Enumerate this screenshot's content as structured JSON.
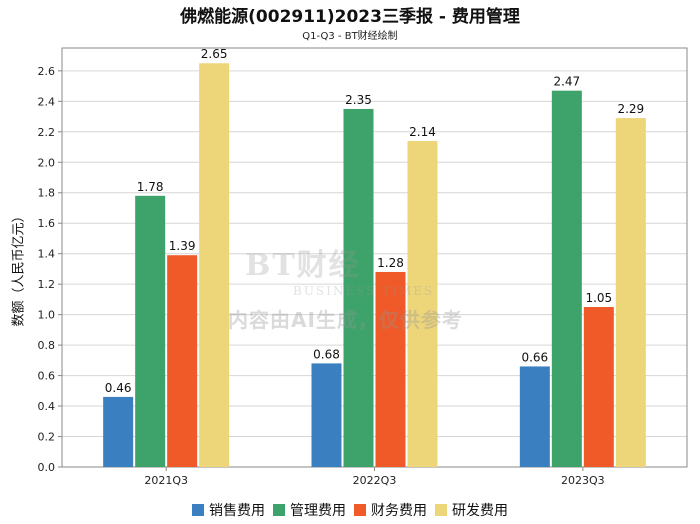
{
  "title": "佛燃能源(002911)2023三季报 - 费用管理",
  "subtitle": "Q1-Q3 - BT财经绘制",
  "watermark": {
    "logo": "BT财经",
    "logo_sub": "BUSINESS TIMES",
    "text": "内容由AI生成，仅供参考"
  },
  "chart_data": {
    "type": "bar",
    "title": "佛燃能源(002911)2023三季报 - 费用管理",
    "subtitle": "Q1-Q3 - BT财经绘制",
    "xlabel": "",
    "ylabel": "数额（人民币亿元）",
    "categories": [
      "2021Q3",
      "2022Q3",
      "2023Q3"
    ],
    "series": [
      {
        "name": "销售费用",
        "color": "#3a80c0",
        "values": [
          0.46,
          0.68,
          0.66
        ]
      },
      {
        "name": "管理费用",
        "color": "#3ea36a",
        "values": [
          1.78,
          2.35,
          2.47
        ]
      },
      {
        "name": "财务费用",
        "color": "#ef5a28",
        "values": [
          1.39,
          1.28,
          1.05
        ]
      },
      {
        "name": "研发费用",
        "color": "#edd67a",
        "values": [
          2.65,
          2.14,
          2.29
        ]
      }
    ],
    "ylim": [
      0,
      2.75
    ],
    "yticks": [
      "0.0",
      "0.2",
      "0.4",
      "0.6",
      "0.8",
      "1.0",
      "1.2",
      "1.4",
      "1.6",
      "1.8",
      "2.0",
      "2.2",
      "2.4",
      "2.6"
    ],
    "grid": true,
    "legend_position": "bottom"
  }
}
